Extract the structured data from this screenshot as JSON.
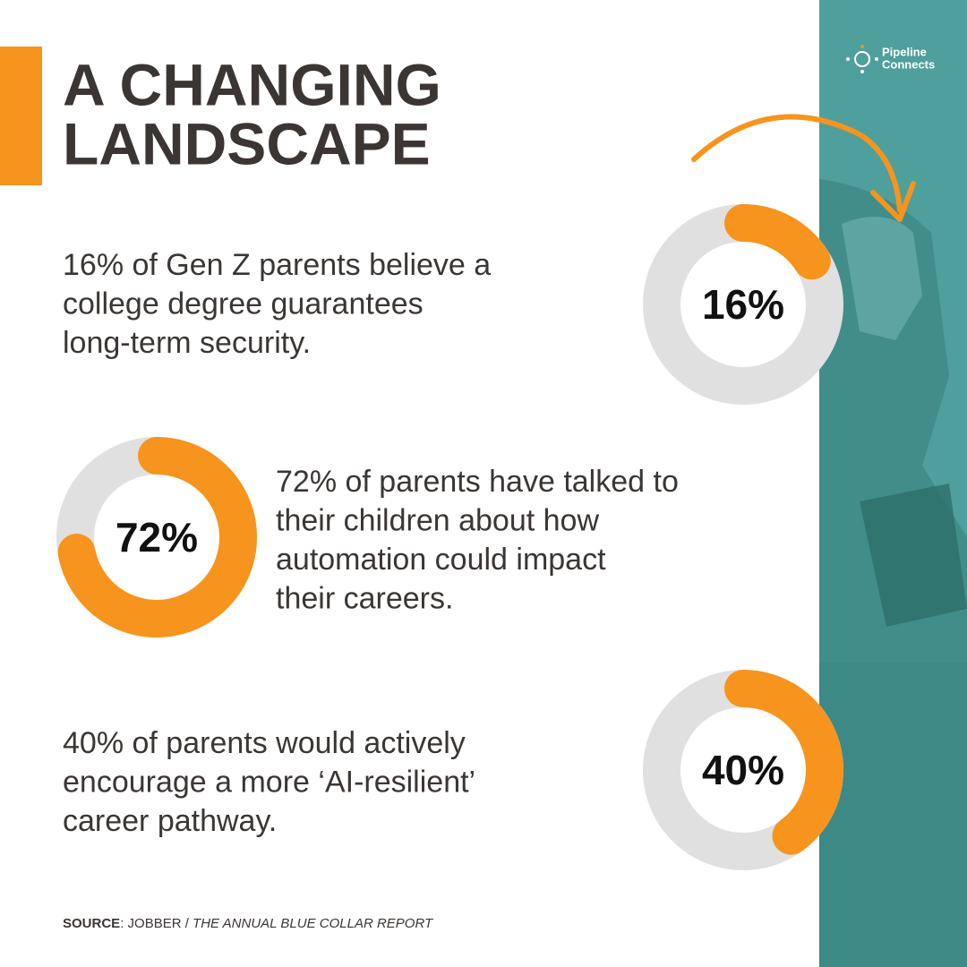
{
  "header": {
    "title_line1": "A CHANGING",
    "title_line2": "LANDSCAPE"
  },
  "brand": {
    "line1": "Pipeline",
    "line2": "Connects"
  },
  "stats": [
    {
      "value": 16,
      "value_label": "16%",
      "text": [
        "16% of Gen Z parents believe a",
        "college degree guarantees",
        "long-term security."
      ]
    },
    {
      "value": 72,
      "value_label": "72%",
      "text": [
        "72% of parents have talked to",
        "their children about how",
        "automation could impact",
        "their careers."
      ]
    },
    {
      "value": 40,
      "value_label": "40%",
      "text": [
        "40% of parents would actively",
        "encourage a more ‘AI-resilient’",
        "career pathway."
      ]
    }
  ],
  "source": {
    "label": "SOURCE",
    "publisher": ": JOBBER / ",
    "report": "THE ANNUAL BLUE COLLAR REPORT"
  }
}
